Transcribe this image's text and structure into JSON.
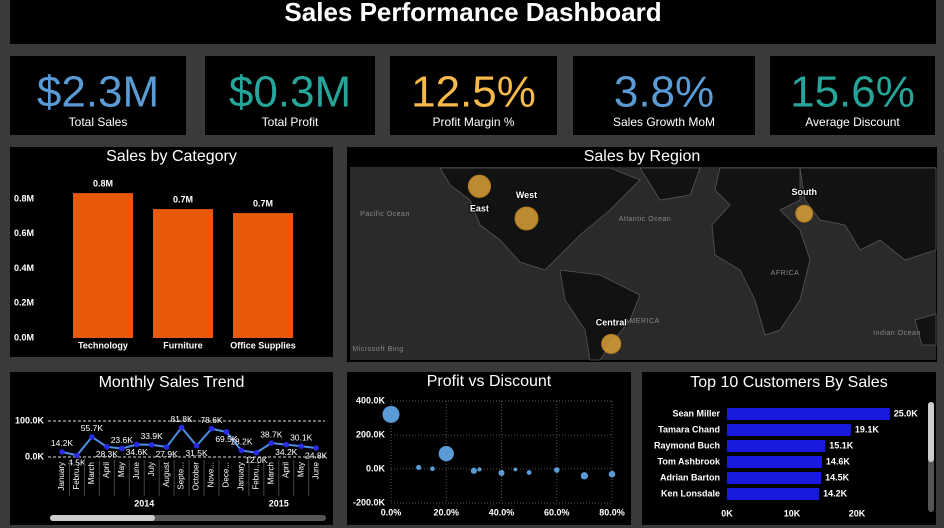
{
  "title": "Sales Performance Dashboard",
  "kpis": [
    {
      "value": "$2.3M",
      "label": "Total Sales",
      "color": "#5b9bd5"
    },
    {
      "value": "$0.3M",
      "label": "Total Profit",
      "color": "#26a69a"
    },
    {
      "value": "12.5%",
      "label": "Profit Margin %",
      "color": "#f6b94a"
    },
    {
      "value": "3.8%",
      "label": "Sales Growth MoM",
      "color": "#5b9bd5"
    },
    {
      "value": "15.6%",
      "label": "Average Discount",
      "color": "#26a69a"
    }
  ],
  "chart_data": [
    {
      "type": "bar",
      "title": "Sales by Category",
      "categories": [
        "Technology",
        "Furniture",
        "Office Supplies"
      ],
      "values": [
        834000,
        742000,
        719000
      ],
      "value_labels": [
        "0.8M",
        "0.7M",
        "0.7M"
      ],
      "color": "#e8590c",
      "ylim": [
        0,
        900000
      ],
      "yticks": [
        {
          "value": 0,
          "label": "0.0M"
        },
        {
          "value": 200000,
          "label": "0.2M"
        },
        {
          "value": 400000,
          "label": "0.4M"
        },
        {
          "value": 600000,
          "label": "0.6M"
        },
        {
          "value": 800000,
          "label": "0.8M"
        }
      ]
    },
    {
      "type": "map",
      "title": "Sales by Region",
      "categories": [
        "East",
        "West",
        "South",
        "Central"
      ],
      "lon": [
        -100,
        -80,
        38,
        -44
      ],
      "lat": [
        63,
        43,
        46,
        -35
      ],
      "values": [
        678000,
        725000,
        392000,
        501000
      ],
      "color": "#e6a93a",
      "xlim": [
        -155,
        94
      ],
      "ylim": [
        -45,
        75
      ],
      "map_labels": [
        "Pacific Ocean",
        "Atlantic Ocean",
        "Indian Ocean",
        "AMERICA",
        "AFRICA",
        "Microsoft Bing"
      ]
    },
    {
      "type": "line",
      "title": "Monthly Sales Trend",
      "categories": [
        "January",
        "Febru...",
        "March",
        "April",
        "May",
        "June",
        "July",
        "August",
        "Septe...",
        "October",
        "Nove...",
        "Dece...",
        "January",
        "Febru...",
        "March",
        "April",
        "May",
        "June"
      ],
      "x_groups": [
        "2014",
        "2015"
      ],
      "values": [
        14200,
        4500,
        55700,
        28300,
        23600,
        34600,
        33900,
        27900,
        81800,
        31500,
        78600,
        69500,
        18200,
        12000,
        38700,
        34200,
        30100,
        24800
      ],
      "value_labels": [
        "14.2K",
        "4.5K",
        "55.7K",
        "28.3K",
        "23.6K",
        "34.6K",
        "33.9K",
        "27.9K",
        "81.8K",
        "31.5K",
        "78.6K",
        "69.5K",
        "18.2K",
        "12.0K",
        "38.7K",
        "34.2K",
        "30.1K",
        "24.8K"
      ],
      "color": "#4d8fe8",
      "marker_color": "#2a2ae8",
      "ylim": [
        0,
        100000
      ],
      "yticks": [
        {
          "value": 0,
          "label": "0.0K"
        },
        {
          "value": 100000,
          "label": "100.0K"
        }
      ],
      "grid": true
    },
    {
      "type": "scatter",
      "title": "Profit vs Discount",
      "x": [
        0,
        10,
        15,
        20,
        30,
        32,
        40,
        45,
        50,
        60,
        70,
        80
      ],
      "values": [
        320988,
        9030,
        1419,
        90338,
        -10369,
        -2391,
        -23057,
        -2493,
        -20506,
        -5945,
        -40075,
        -30539
      ],
      "sizes": [
        4798,
        94,
        52,
        3657,
        227,
        27,
        206,
        11,
        66,
        138,
        418,
        300
      ],
      "color": "#5b9bd5",
      "xlim": [
        0,
        80
      ],
      "ylim": [
        -200000,
        400000
      ],
      "xticks": [
        {
          "value": 0,
          "label": "0.0%"
        },
        {
          "value": 20,
          "label": "20.0%"
        },
        {
          "value": 40,
          "label": "40.0%"
        },
        {
          "value": 60,
          "label": "60.0%"
        },
        {
          "value": 80,
          "label": "80.0%"
        }
      ],
      "yticks": [
        {
          "value": -200000,
          "label": "-200.0K"
        },
        {
          "value": 0,
          "label": "0.0K"
        },
        {
          "value": 200000,
          "label": "200.0K"
        },
        {
          "value": 400000,
          "label": "400.0K"
        }
      ],
      "grid": true
    },
    {
      "type": "hbar",
      "title": "Top 10 Customers By Sales",
      "categories": [
        "Sean Miller",
        "Tamara Chand",
        "Raymond Buch",
        "Tom Ashbrook",
        "Adrian Barton",
        "Ken Lonsdale"
      ],
      "values": [
        25043,
        19052,
        15117,
        14596,
        14474,
        14175
      ],
      "value_labels": [
        "25.0K",
        "19.1K",
        "15.1K",
        "14.6K",
        "14.5K",
        "14.2K"
      ],
      "color": "#1a1adf",
      "xlim": [
        0,
        28000
      ],
      "xticks": [
        {
          "value": 0,
          "label": "0K"
        },
        {
          "value": 10000,
          "label": "10K"
        },
        {
          "value": 20000,
          "label": "20K"
        }
      ]
    }
  ]
}
